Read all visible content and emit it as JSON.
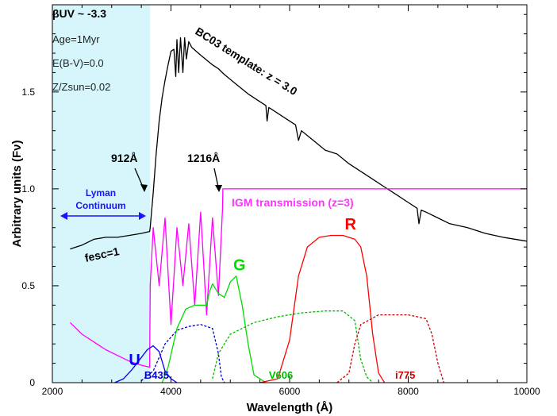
{
  "chart_data": {
    "type": "line",
    "xlabel": "Wavelength (Å)",
    "ylabel": "Arbitrary units (Fν)",
    "xlim": [
      2000,
      10000
    ],
    "ylim": [
      0,
      1.95
    ],
    "xticks": [
      2000,
      4000,
      6000,
      8000,
      10000
    ],
    "xtick_labels": [
      "2000",
      "4000",
      "6000",
      "8000",
      "10000"
    ],
    "yticks": [
      0,
      0.5,
      1.0,
      1.5
    ],
    "ytick_labels": [
      "0",
      "0.5",
      "1.0",
      "1.5"
    ],
    "grid": false,
    "lyman_region": {
      "x": [
        2000,
        3648
      ],
      "color": "#d6f6fb"
    },
    "params": [
      "βUV ~ -3.3",
      "Age=1Myr",
      "E(B-V)=0.0",
      "Z/Zsun=0.02"
    ],
    "annotations": {
      "template": "BC03 template: z = 3.0",
      "ly912": "912Å",
      "ly1216": "1216Å",
      "lyman_continuum": [
        "Lyman",
        "Continuum"
      ],
      "fesc": "fesc=1",
      "igm": "IGM transmission (z=3)"
    },
    "series": [
      {
        "name": "BC03 template: z = 3.0",
        "color": "#000000",
        "x": [
          2300,
          2500,
          2700,
          2900,
          3100,
          3300,
          3500,
          3640,
          3650,
          3700,
          3750,
          3800,
          3850,
          3900,
          3950,
          4000,
          4050,
          4080,
          4100,
          4130,
          4160,
          4200,
          4230,
          4260,
          4300,
          4350,
          4500,
          4700,
          4800,
          4900,
          5100,
          5300,
          5500,
          5600,
          5620,
          5650,
          5700,
          5900,
          6100,
          6150,
          6200,
          6400,
          6600,
          6800,
          7000,
          7200,
          7400,
          7600,
          7800,
          8000,
          8150,
          8180,
          8220,
          8300,
          8500,
          8700,
          9000,
          9300,
          9600,
          10000
        ],
        "y": [
          0.69,
          0.71,
          0.74,
          0.75,
          0.75,
          0.76,
          0.77,
          0.78,
          0.8,
          0.98,
          1.18,
          1.35,
          1.47,
          1.56,
          1.64,
          1.71,
          1.72,
          1.58,
          1.77,
          1.6,
          1.78,
          1.6,
          1.78,
          1.67,
          1.76,
          1.73,
          1.69,
          1.64,
          1.62,
          1.59,
          1.54,
          1.49,
          1.45,
          1.43,
          1.35,
          1.42,
          1.41,
          1.37,
          1.33,
          1.25,
          1.3,
          1.25,
          1.2,
          1.18,
          1.13,
          1.09,
          1.05,
          1.01,
          0.97,
          0.93,
          0.9,
          0.82,
          0.89,
          0.88,
          0.85,
          0.82,
          0.8,
          0.77,
          0.75,
          0.73
        ]
      },
      {
        "name": "IGM transmission (z=3)",
        "color": "#ff00ff",
        "x": [
          2300,
          2500,
          2700,
          2900,
          3100,
          3300,
          3500,
          3640,
          3650,
          3700,
          3800,
          3900,
          4000,
          4100,
          4200,
          4300,
          4400,
          4500,
          4600,
          4700,
          4800,
          4870,
          4875,
          10000
        ],
        "y": [
          0.31,
          0.25,
          0.21,
          0.17,
          0.14,
          0.11,
          0.09,
          0.08,
          0.5,
          0.8,
          0.5,
          0.85,
          0.3,
          0.8,
          0.5,
          0.82,
          0.4,
          0.88,
          0.35,
          0.85,
          0.45,
          0.9,
          1.0,
          1.0
        ]
      },
      {
        "name": "U",
        "color": "#0000ff",
        "x": [
          3050,
          3200,
          3350,
          3500,
          3600,
          3700,
          3800,
          3850,
          3900,
          4000,
          4100
        ],
        "y": [
          0.0,
          0.02,
          0.07,
          0.13,
          0.17,
          0.19,
          0.16,
          0.11,
          0.06,
          0.02,
          0.0
        ]
      },
      {
        "name": "B435",
        "color": "#0000cc",
        "x": [
          3500,
          3700,
          3900,
          4100,
          4300,
          4500,
          4700,
          4800,
          4850,
          4900
        ],
        "y": [
          0.01,
          0.06,
          0.2,
          0.27,
          0.29,
          0.3,
          0.28,
          0.15,
          0.03,
          0.0
        ]
      },
      {
        "name": "G",
        "color": "#00dd00",
        "x": [
          3850,
          3950,
          4100,
          4250,
          4400,
          4600,
          4650,
          4700,
          4800,
          4900,
          5000,
          5100,
          5200,
          5300,
          5400,
          5600
        ],
        "y": [
          0.0,
          0.08,
          0.28,
          0.38,
          0.4,
          0.4,
          0.47,
          0.51,
          0.46,
          0.44,
          0.52,
          0.55,
          0.4,
          0.2,
          0.04,
          0.0
        ]
      },
      {
        "name": "V606",
        "color": "#00bb00",
        "x": [
          4700,
          4800,
          5000,
          5400,
          5800,
          6200,
          6600,
          6900,
          7100,
          7200,
          7300,
          7400
        ],
        "y": [
          0.02,
          0.15,
          0.25,
          0.31,
          0.34,
          0.36,
          0.37,
          0.37,
          0.32,
          0.12,
          0.03,
          0.0
        ]
      },
      {
        "name": "R",
        "color": "#ff0000",
        "x": [
          5500,
          5800,
          6000,
          6150,
          6300,
          6500,
          6700,
          6900,
          7100,
          7200,
          7300,
          7400,
          7500,
          7600
        ],
        "y": [
          0.0,
          0.02,
          0.22,
          0.55,
          0.7,
          0.75,
          0.76,
          0.76,
          0.74,
          0.7,
          0.55,
          0.25,
          0.05,
          0.0
        ]
      },
      {
        "name": "i775",
        "color": "#cc0000",
        "x": [
          6800,
          7000,
          7100,
          7200,
          7500,
          8000,
          8300,
          8400,
          8500,
          8600
        ],
        "y": [
          0.0,
          0.05,
          0.2,
          0.3,
          0.35,
          0.35,
          0.33,
          0.25,
          0.1,
          0.0
        ]
      }
    ],
    "filter_labels": [
      {
        "text": "U",
        "x": 3290,
        "y": 0.09,
        "color": "#0000ff",
        "size": 20
      },
      {
        "text": "B435",
        "x": 3550,
        "y": 0.02,
        "color": "#0000cc",
        "size": 13
      },
      {
        "text": "G",
        "x": 5050,
        "y": 0.58,
        "color": "#00dd00",
        "size": 20
      },
      {
        "text": "V606",
        "x": 5650,
        "y": 0.02,
        "color": "#00bb00",
        "size": 13
      },
      {
        "text": "R",
        "x": 6930,
        "y": 0.79,
        "color": "#ff0000",
        "size": 20
      },
      {
        "text": "i775",
        "x": 7780,
        "y": 0.02,
        "color": "#cc0000",
        "size": 13
      }
    ]
  }
}
